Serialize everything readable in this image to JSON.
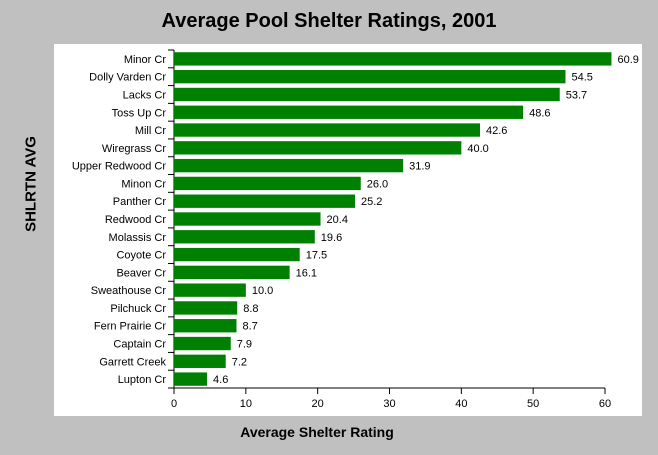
{
  "chart_data": {
    "type": "bar",
    "orientation": "horizontal",
    "title": "Average Pool Shelter Ratings, 2001",
    "xlabel": "Average Shelter Rating",
    "ylabel": "SHLRTN AVG",
    "xlim": [
      0,
      60
    ],
    "x_ticks": [
      0,
      10,
      20,
      30,
      40,
      50,
      60
    ],
    "grid": false,
    "legend": "none",
    "bar_color": "#008000",
    "categories": [
      "Minor Cr",
      "Dolly Varden Cr",
      "Lacks Cr",
      "Toss Up Cr",
      "Mill Cr",
      "Wiregrass Cr",
      "Upper Redwood Cr",
      "Minon Cr",
      "Panther Cr",
      "Redwood Cr",
      "Molassis Cr",
      "Coyote Cr",
      "Beaver Cr",
      "Sweathouse Cr",
      "Pilchuck Cr",
      "Fern Prairie Cr",
      "Captain Cr",
      "Garrett Creek",
      "Lupton Cr"
    ],
    "values": [
      60.9,
      54.5,
      53.7,
      48.6,
      42.6,
      40.0,
      31.9,
      26.0,
      25.2,
      20.4,
      19.6,
      17.5,
      16.1,
      10.0,
      8.8,
      8.7,
      7.9,
      7.2,
      4.6
    ],
    "value_labels": [
      "60.9",
      "54.5",
      "53.7",
      "48.6",
      "42.6",
      "40.0",
      "31.9",
      "26.0",
      "25.2",
      "20.4",
      "19.6",
      "17.5",
      "16.1",
      "10.0",
      "8.8",
      "8.7",
      "7.9",
      "7.2",
      "4.6"
    ]
  }
}
